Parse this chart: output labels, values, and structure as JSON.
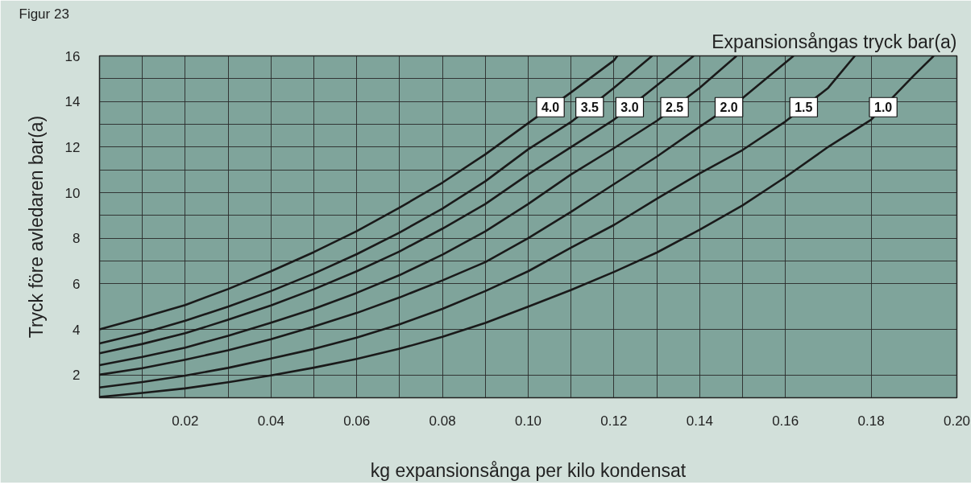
{
  "chart_data": {
    "type": "line",
    "title": "Figur 23",
    "legend_title": "Expansionsångas tryck bar(a)",
    "xlabel": "kg expansionsånga per kilo kondensat",
    "ylabel": "Tryck före avledaren bar(a)",
    "xlim": [
      0,
      0.2
    ],
    "ylim": [
      1,
      16
    ],
    "xticks": [
      {
        "value": 0.01,
        "label": null
      },
      {
        "value": 0.02,
        "label": "0.02"
      },
      {
        "value": 0.03,
        "label": null
      },
      {
        "value": 0.04,
        "label": "0.04"
      },
      {
        "value": 0.05,
        "label": null
      },
      {
        "value": 0.06,
        "label": "0.06"
      },
      {
        "value": 0.07,
        "label": null
      },
      {
        "value": 0.08,
        "label": "0.08"
      },
      {
        "value": 0.09,
        "label": null
      },
      {
        "value": 0.1,
        "label": "0.10"
      },
      {
        "value": 0.11,
        "label": null
      },
      {
        "value": 0.12,
        "label": "0.12"
      },
      {
        "value": 0.13,
        "label": null
      },
      {
        "value": 0.14,
        "label": "0.14"
      },
      {
        "value": 0.15,
        "label": null
      },
      {
        "value": 0.16,
        "label": "0.16"
      },
      {
        "value": 0.18,
        "label": "0.18"
      },
      {
        "value": 0.2,
        "label": "0.20"
      }
    ],
    "yticks": [
      2,
      4,
      6,
      {
        "value": 7,
        "label": null
      },
      8,
      {
        "value": 9,
        "label": null
      },
      10,
      {
        "value": 11,
        "label": null
      },
      12,
      {
        "value": 13,
        "label": null
      },
      14,
      {
        "value": 15,
        "label": null
      },
      16
    ],
    "grid": true,
    "legend": "top right",
    "series": [
      {
        "name": "4.0",
        "color": "#1a1a1a",
        "x": [
          0,
          0.01,
          0.02,
          0.03,
          0.04,
          0.05,
          0.06,
          0.07,
          0.08,
          0.09,
          0.1,
          0.11,
          0.12,
          0.1208
        ],
        "values": [
          4.0,
          4.52,
          5.07,
          5.77,
          6.55,
          7.39,
          8.31,
          9.34,
          10.44,
          11.68,
          13.05,
          14.4,
          15.8,
          16
        ]
      },
      {
        "name": "3.5",
        "color": "#1a1a1a",
        "x": [
          0,
          0.01,
          0.02,
          0.03,
          0.04,
          0.05,
          0.06,
          0.07,
          0.08,
          0.09,
          0.1,
          0.11,
          0.12,
          0.1289
        ],
        "values": [
          3.38,
          3.83,
          4.38,
          5.0,
          5.68,
          6.45,
          7.3,
          8.25,
          9.3,
          10.5,
          11.9,
          13.1,
          14.6,
          16
        ]
      },
      {
        "name": "3.0",
        "color": "#1a1a1a",
        "x": [
          0,
          0.01,
          0.02,
          0.03,
          0.04,
          0.05,
          0.06,
          0.07,
          0.08,
          0.09,
          0.1,
          0.11,
          0.12,
          0.13,
          0.1386
        ],
        "values": [
          2.95,
          3.36,
          3.83,
          4.42,
          5.05,
          5.76,
          6.55,
          7.42,
          8.42,
          9.5,
          10.8,
          12.0,
          13.2,
          14.7,
          16
        ]
      },
      {
        "name": "2.5",
        "color": "#1a1a1a",
        "x": [
          0,
          0.01,
          0.02,
          0.03,
          0.04,
          0.05,
          0.06,
          0.07,
          0.08,
          0.09,
          0.1,
          0.11,
          0.12,
          0.13,
          0.14,
          0.1486
        ],
        "values": [
          2.43,
          2.79,
          3.2,
          3.72,
          4.29,
          4.9,
          5.6,
          6.38,
          7.28,
          8.3,
          9.5,
          10.8,
          11.95,
          13.15,
          14.6,
          16
        ]
      },
      {
        "name": "2.0",
        "color": "#1a1a1a",
        "x": [
          0,
          0.01,
          0.02,
          0.03,
          0.04,
          0.05,
          0.06,
          0.07,
          0.08,
          0.09,
          0.1,
          0.11,
          0.12,
          0.13,
          0.14,
          0.15,
          0.1619
        ],
        "values": [
          2.01,
          2.3,
          2.67,
          3.08,
          3.57,
          4.12,
          4.72,
          5.4,
          6.15,
          6.95,
          8.0,
          9.16,
          10.37,
          11.58,
          12.89,
          14.15,
          16
        ]
      },
      {
        "name": "1.5",
        "color": "#1a1a1a",
        "x": [
          0,
          0.01,
          0.02,
          0.03,
          0.04,
          0.05,
          0.06,
          0.07,
          0.08,
          0.09,
          0.1,
          0.11,
          0.12,
          0.13,
          0.14,
          0.15,
          0.16,
          0.17,
          0.1762
        ],
        "values": [
          1.45,
          1.69,
          1.97,
          2.31,
          2.72,
          3.14,
          3.64,
          4.22,
          4.9,
          5.68,
          6.55,
          7.59,
          8.58,
          9.73,
          10.84,
          11.87,
          13.12,
          14.6,
          16
        ]
      },
      {
        "name": "1.0",
        "color": "#1a1a1a",
        "x": [
          0,
          0.01,
          0.02,
          0.03,
          0.04,
          0.05,
          0.06,
          0.07,
          0.08,
          0.09,
          0.1,
          0.11,
          0.12,
          0.13,
          0.14,
          0.15,
          0.16,
          0.17,
          0.18,
          0.19,
          0.1946
        ],
        "values": [
          1.03,
          1.21,
          1.41,
          1.68,
          1.98,
          2.32,
          2.7,
          3.15,
          3.67,
          4.28,
          5.0,
          5.73,
          6.52,
          7.37,
          8.37,
          9.44,
          10.68,
          12.01,
          13.2,
          15.15,
          16
        ]
      }
    ]
  }
}
